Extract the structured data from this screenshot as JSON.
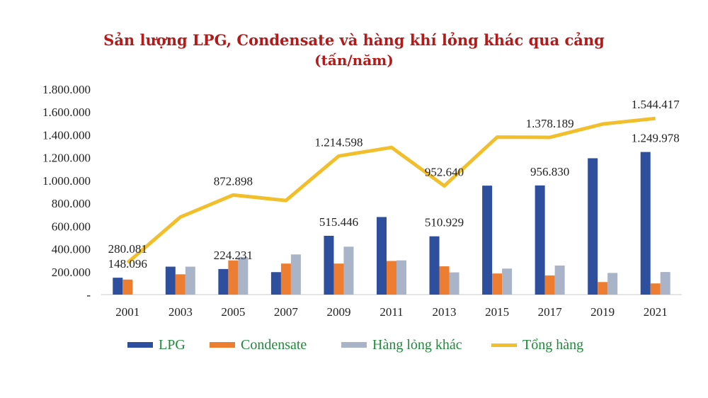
{
  "chart_data": {
    "type": "bar",
    "title": "Sản lượng LPG, Condensate và hàng khí lỏng khác qua cảng",
    "subtitle": "(tấn/năm)",
    "categories": [
      "2001",
      "2003",
      "2005",
      "2007",
      "2009",
      "2011",
      "2013",
      "2015",
      "2017",
      "2019",
      "2021"
    ],
    "ylim": [
      0,
      1800000
    ],
    "y_ticks": [
      "-",
      "200.000",
      "400.000",
      "600.000",
      "800.000",
      "1.000.000",
      "1.200.000",
      "1.400.000",
      "1.600.000",
      "1.800.000"
    ],
    "y_tick_values": [
      0,
      200000,
      400000,
      600000,
      800000,
      1000000,
      1200000,
      1400000,
      1600000,
      1800000
    ],
    "grid": false,
    "legend_position": "bottom",
    "series": [
      {
        "name": "LPG",
        "type": "bar",
        "color": "#2e4f9e",
        "values": [
          148096,
          245000,
          224231,
          197000,
          515446,
          680000,
          510929,
          955000,
          956830,
          1195000,
          1249978
        ]
      },
      {
        "name": "Condensate",
        "type": "bar",
        "color": "#ed7d31",
        "values": [
          132000,
          178000,
          300000,
          272000,
          272000,
          295000,
          248000,
          185000,
          168000,
          110000,
          98000
        ]
      },
      {
        "name": "Hàng lỏng khác",
        "type": "bar",
        "color": "#aab4c8",
        "values": [
          0,
          245000,
          330000,
          352000,
          420000,
          300000,
          195000,
          228000,
          255000,
          190000,
          198000
        ]
      },
      {
        "name": "Tổng hàng",
        "type": "line",
        "color": "#f2bf2c",
        "values": [
          280081,
          680000,
          872898,
          825000,
          1214598,
          1290000,
          952640,
          1380000,
          1378189,
          1495000,
          1544417
        ]
      }
    ],
    "data_labels": [
      {
        "text": "148.096",
        "category": "2001",
        "value": 148096
      },
      {
        "text": "280.081",
        "category": "2001",
        "value": 280081
      },
      {
        "text": "224.231",
        "category": "2005",
        "value": 224231
      },
      {
        "text": "872.898",
        "category": "2005",
        "value": 872898
      },
      {
        "text": "515.446",
        "category": "2009",
        "value": 515446
      },
      {
        "text": "1.214.598",
        "category": "2009",
        "value": 1214598
      },
      {
        "text": "510.929",
        "category": "2013",
        "value": 510929
      },
      {
        "text": "952.640",
        "category": "2013",
        "value": 952640
      },
      {
        "text": "956.830",
        "category": "2017",
        "value": 956830
      },
      {
        "text": "1.378.189",
        "category": "2017",
        "value": 1378189
      },
      {
        "text": "1.249.978",
        "category": "2021",
        "value": 1249978
      },
      {
        "text": "1.544.417",
        "category": "2021",
        "value": 1544417
      }
    ]
  }
}
